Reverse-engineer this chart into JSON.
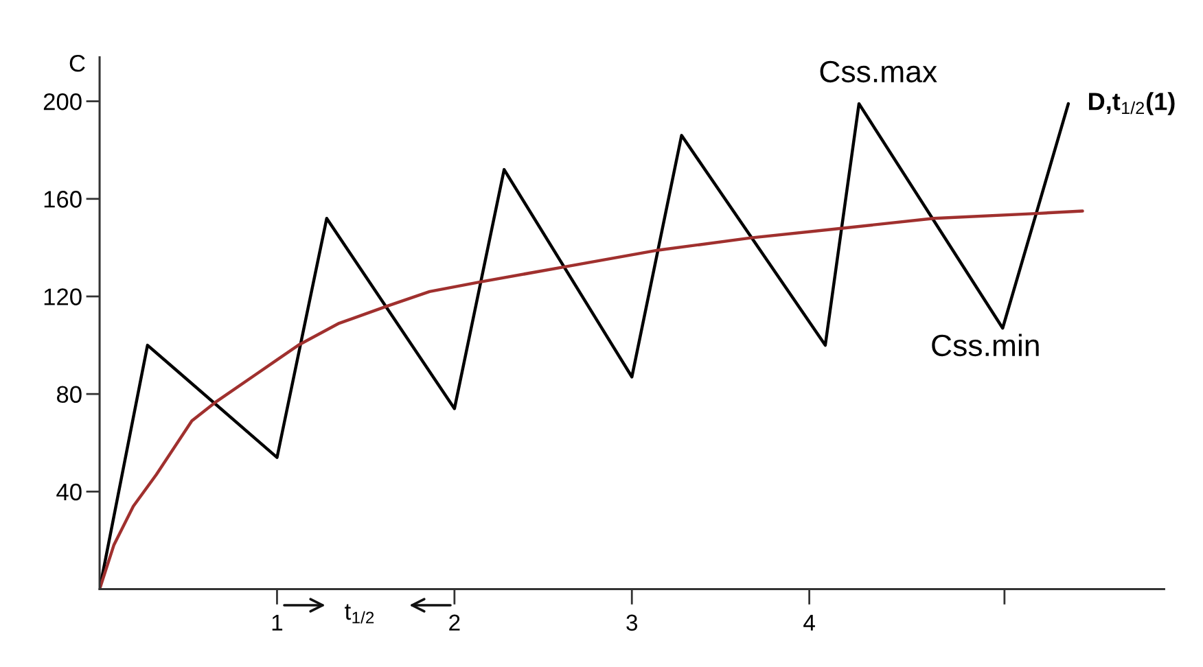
{
  "chart_data": {
    "type": "line",
    "ylabel": "C",
    "xlim": [
      0,
      6
    ],
    "ylim": [
      0,
      218
    ],
    "xticks": [
      1,
      2,
      3,
      4,
      {
        "value": 5.1,
        "label": null
      }
    ],
    "yticks": [
      40,
      80,
      120,
      160,
      200
    ],
    "grid": false,
    "series": [
      {
        "color": "#000000",
        "x": [
          0,
          0.27,
          1.0,
          1.28,
          2.0,
          2.28,
          3.0,
          3.28,
          4.09,
          4.28,
          5.09,
          5.46
        ],
        "values": [
          0,
          100,
          54,
          152,
          74,
          172,
          87,
          186,
          100,
          199,
          107,
          199
        ]
      },
      {
        "color": "#a0302e",
        "x": [
          0,
          0.08,
          0.19,
          0.32,
          0.52,
          0.66,
          0.88,
          1.0,
          1.12,
          1.35,
          1.62,
          1.86,
          2.15,
          2.61,
          3.15,
          3.67,
          4.19,
          4.7,
          5.28,
          5.54
        ],
        "values": [
          0,
          18,
          34,
          47,
          69,
          77,
          88,
          94,
          100,
          109,
          116,
          122,
          126,
          132,
          139,
          144,
          148,
          152,
          154,
          155
        ]
      }
    ],
    "annotations": [
      {
        "text": "Css.max",
        "x": 4.28,
        "y": 199
      },
      {
        "text": "Css.min",
        "x": 5.09,
        "y": 107
      },
      {
        "text": "D,t$_{1/2}$(1)",
        "x": 5.46,
        "y": 199
      },
      "t$_{1/2}$"
    ]
  }
}
